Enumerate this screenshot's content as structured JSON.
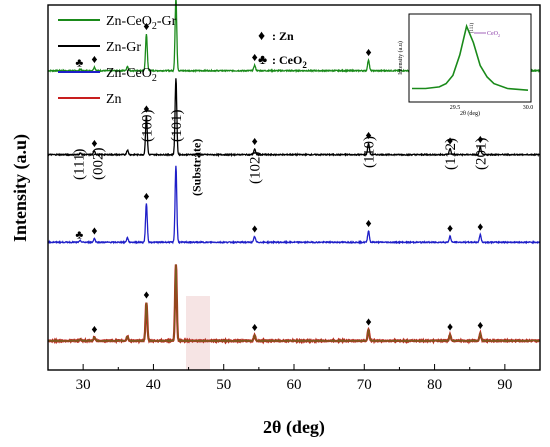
{
  "chart_data": {
    "type": "line",
    "title": "",
    "xlabel": "2θ (deg)",
    "ylabel": "Intensity (a.u)",
    "xlim": [
      25,
      95
    ],
    "xticks": [
      30,
      40,
      50,
      60,
      70,
      80,
      90
    ],
    "grid": false,
    "legend_position": "top-left",
    "series": [
      {
        "name": "Zn-CeO",
        "name_sub": "2",
        "name_suffix": "-Gr",
        "color": "#1a8a1a",
        "baseline": 0.82
      },
      {
        "name": "Zn-Gr",
        "color": "#000000",
        "baseline": 0.59
      },
      {
        "name": "Zn-CeO",
        "name_sub": "2",
        "color": "#1f1fc8",
        "baseline": 0.35
      },
      {
        "name": "Zn",
        "color": "#c81e1e",
        "overlay_color": "#7a5c1e",
        "baseline": 0.08
      }
    ],
    "peaks": [
      {
        "x": 29.6,
        "height": 0.004
      },
      {
        "x": 31.6,
        "height": 0.01
      },
      {
        "x": 36.3,
        "height": 0.012
      },
      {
        "x": 39.0,
        "height": 0.1
      },
      {
        "x": 43.2,
        "height": 0.2
      },
      {
        "x": 54.4,
        "height": 0.015
      },
      {
        "x": 70.6,
        "height": 0.03
      },
      {
        "x": 82.2,
        "height": 0.016
      },
      {
        "x": 86.5,
        "height": 0.02
      }
    ],
    "peak_labels": [
      {
        "text": "(111)",
        "x": 29.6
      },
      {
        "text": "(002)",
        "x": 31.6
      },
      {
        "text": "(100)",
        "x": 39.0
      },
      {
        "text": "(101)",
        "x": 43.2
      },
      {
        "text": "(Substrate)",
        "x": 46.0
      },
      {
        "text": "(102)",
        "x": 54.4
      },
      {
        "text": "(110)",
        "x": 70.6
      },
      {
        "text": "(112)",
        "x": 82.2
      },
      {
        "text": "(201)",
        "x": 86.5
      }
    ],
    "marker_legend": {
      "zn_symbol": "♦",
      "zn_label": ": Zn",
      "ceo2_symbol": "♣",
      "ceo2_label": ": CeO",
      "ceo2_sub": "2"
    },
    "inset": {
      "xlabel": "2θ (deg)",
      "ylabel": "Intensity (a.u)",
      "xticks": [
        "29.5",
        "30.0"
      ],
      "annotation": "CeO",
      "annotation_sub": "2",
      "peak_label": "(111)",
      "x": [
        29.2,
        29.3,
        29.4,
        29.45,
        29.5,
        29.55,
        29.6,
        29.65,
        29.7,
        29.75,
        29.8,
        29.9,
        30.05
      ],
      "y": [
        0.14,
        0.14,
        0.16,
        0.2,
        0.3,
        0.55,
        0.9,
        0.7,
        0.42,
        0.28,
        0.2,
        0.14,
        0.12
      ]
    }
  }
}
